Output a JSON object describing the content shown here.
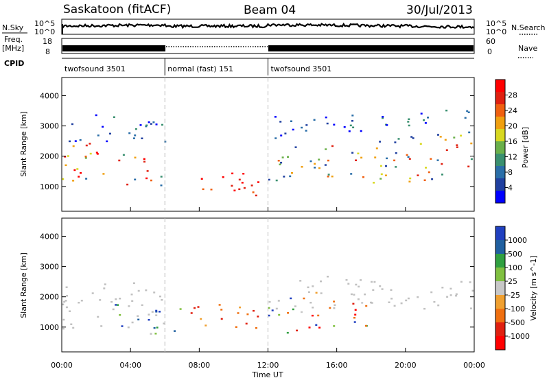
{
  "header": {
    "radar": "Saskatoon (fitACF)",
    "beam": "Beam 04",
    "date": "30/Jul/2013"
  },
  "strips": {
    "nsky_label": "N.Sky",
    "nsearch_label": "N.Search",
    "nsky_ticks": [
      "10^5",
      "10^0"
    ],
    "nsearch_ticks": [
      "10^5",
      "10^0"
    ],
    "freq_label_1": "Freq.",
    "freq_label_2": "[MHz]",
    "freq_ticks": [
      "18",
      "8"
    ],
    "nave_label": "Nave",
    "nave_ticks": [
      "60",
      "0"
    ],
    "cpid_label": "CPID",
    "cpid_segments": [
      {
        "label": "twofsound 3501",
        "start_hour": 0,
        "end_hour": 6
      },
      {
        "label": "normal (fast) 151",
        "start_hour": 6,
        "end_hour": 12
      },
      {
        "label": "twofsound 3501",
        "start_hour": 12,
        "end_hour": 24
      }
    ]
  },
  "chart_data": [
    {
      "type": "heatmap",
      "quantity": "Power",
      "ylabel": "Slant Range [km]",
      "ylim": [
        180,
        4600
      ],
      "yticks": [
        1000,
        2000,
        3000,
        4000
      ],
      "xlim": [
        0,
        24
      ],
      "colorbar_label": "Power [dB]",
      "colorbar_ticks": [
        4,
        8,
        12,
        16,
        20,
        24,
        28
      ],
      "colorbar_range": [
        0,
        32
      ],
      "scatter_bands": [
        {
          "t0": 0,
          "t1": 6,
          "r0": 1100,
          "r1": 2400,
          "level": "high"
        },
        {
          "t0": 0,
          "t1": 6,
          "r0": 2400,
          "r1": 3400,
          "level": "low"
        },
        {
          "t0": 8,
          "t1": 12,
          "r0": 600,
          "r1": 1600,
          "level": "very-high"
        },
        {
          "t0": 12,
          "t1": 24,
          "r0": 1200,
          "r1": 2600,
          "level": "mid"
        },
        {
          "t0": 12,
          "t1": 24,
          "r0": 2600,
          "r1": 3500,
          "level": "low"
        }
      ]
    },
    {
      "type": "heatmap",
      "quantity": "Velocity",
      "ylabel": "Slant Range [km]",
      "ylim": [
        180,
        4600
      ],
      "yticks": [
        1000,
        2000,
        3000,
        4000
      ],
      "xlim": [
        0,
        24
      ],
      "xticks": [
        "00:00",
        "04:00",
        "08:00",
        "12:00",
        "16:00",
        "20:00",
        "00:00"
      ],
      "xlabel": "Time UT",
      "colorbar_label": "Velocity [m s^-1]",
      "colorbar_ticks": [
        "1000",
        "500",
        "100",
        "25",
        "-25",
        "-100",
        "-500",
        "-1000"
      ],
      "scatter_bands": [
        {
          "t0": 0,
          "t1": 6,
          "r0": 900,
          "r1": 2600,
          "level": "ground"
        },
        {
          "t0": 3,
          "t1": 7,
          "r0": 900,
          "r1": 1800,
          "level": "positive"
        },
        {
          "t0": 7,
          "t1": 12,
          "r0": 900,
          "r1": 1700,
          "level": "negative"
        },
        {
          "t0": 12,
          "t1": 18,
          "r0": 900,
          "r1": 2100,
          "level": "mixed"
        },
        {
          "t0": 12,
          "t1": 24,
          "r0": 1500,
          "r1": 2600,
          "level": "ground"
        }
      ]
    }
  ],
  "colors": {
    "power_scale": [
      "#0000ff",
      "#2040a0",
      "#2a6ea8",
      "#3a9070",
      "#6ab04a",
      "#d8d820",
      "#f0a010",
      "#f06010",
      "#e02010",
      "#ff0000"
    ],
    "velocity_scale": [
      "#2040c0",
      "#2060a0",
      "#30a040",
      "#80c040",
      "#c8c8c8",
      "#f0a030",
      "#f07010",
      "#e02010",
      "#ff0000"
    ],
    "velocity_gray": "#c0c0c0"
  }
}
